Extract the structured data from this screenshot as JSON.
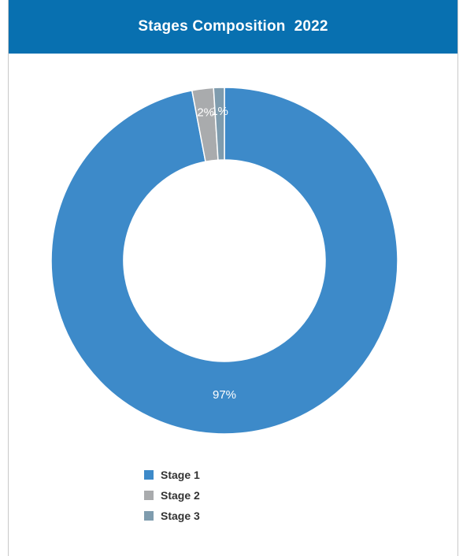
{
  "header": {
    "title": "Stages Composition",
    "year": "2022"
  },
  "chart_data": {
    "type": "pie",
    "variant": "donut",
    "categories": [
      "Stage 1",
      "Stage 2",
      "Stage 3"
    ],
    "values": [
      97,
      2,
      1
    ],
    "labels": [
      "97%",
      "2%",
      "1%"
    ],
    "colors": [
      "#3d8ac9",
      "#a9abad",
      "#7f9cae"
    ],
    "legend_position": "bottom"
  }
}
